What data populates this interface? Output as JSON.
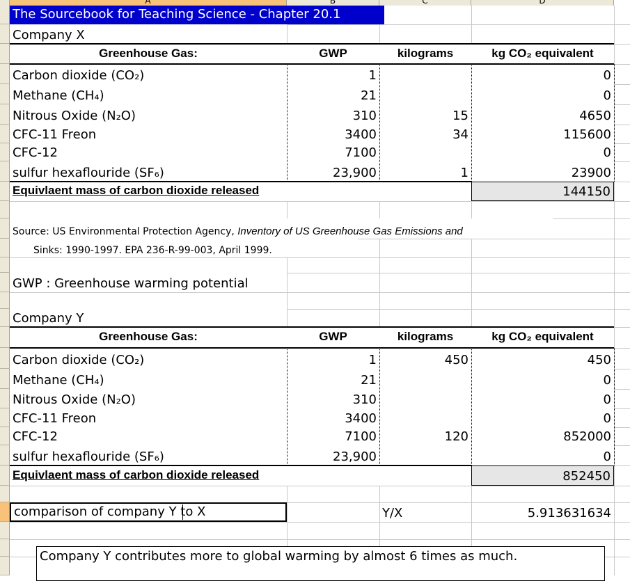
{
  "sheet": {
    "column_headers": [
      "A",
      "B",
      "C",
      "D"
    ],
    "title": "The Sourcebook for Teaching Science - Chapter 20.1",
    "title_bg": "#0000cc",
    "selection_color": "#f8c27a"
  },
  "company_x": {
    "name": "Company X",
    "headers": [
      "Greenhouse Gas:",
      "GWP",
      "kilograms",
      "kg CO₂ equivalent"
    ],
    "rows": [
      {
        "gas": "Carbon dioxide (CO₂)",
        "gwp": "1",
        "kg": "",
        "co2e": "0"
      },
      {
        "gas": "Methane (CH₄)",
        "gwp": "21",
        "kg": "",
        "co2e": "0"
      },
      {
        "gas": "Nitrous Oxide (N₂O)",
        "gwp": "310",
        "kg": "15",
        "co2e": "4650"
      },
      {
        "gas": "CFC-11 Freon",
        "gwp": "3400",
        "kg": "34",
        "co2e": "115600"
      },
      {
        "gas": "CFC-12",
        "gwp": "7100",
        "kg": "",
        "co2e": "0"
      },
      {
        "gas": "sulfur hexaflouride (SF₆)",
        "gwp": "23,900",
        "kg": "1",
        "co2e": "23900"
      }
    ],
    "total_label": "Equivlaent mass of carbon dioxide released",
    "total": "144150"
  },
  "source": {
    "line1_plain": "Source: US Environmental Protection Agency, ",
    "line1_italic": "Inventory of US Greenhouse Gas Emissions and",
    "line2": "Sinks: 1990-1997. EPA 236-R-99-003, April 1999."
  },
  "gwp_note": "GWP : Greenhouse warming potential",
  "company_y": {
    "name": "Company Y",
    "headers": [
      "Greenhouse Gas:",
      "GWP",
      "kilograms",
      "kg CO₂ equivalent"
    ],
    "rows": [
      {
        "gas": "Carbon dioxide (CO₂)",
        "gwp": "1",
        "kg": "450",
        "co2e": "450"
      },
      {
        "gas": "Methane (CH₄)",
        "gwp": "21",
        "kg": "",
        "co2e": "0"
      },
      {
        "gas": "Nitrous Oxide (N₂O)",
        "gwp": "310",
        "kg": "",
        "co2e": "0"
      },
      {
        "gas": "CFC-11 Freon",
        "gwp": "3400",
        "kg": "",
        "co2e": "0"
      },
      {
        "gas": "CFC-12",
        "gwp": "7100",
        "kg": "120",
        "co2e": "852000"
      },
      {
        "gas": "sulfur hexaflouride (SF₆)",
        "gwp": "23,900",
        "kg": "",
        "co2e": "0"
      }
    ],
    "total_label": "Equivlaent mass of carbon dioxide released",
    "total": "852450"
  },
  "comparison": {
    "label": "comparison of company Y to X",
    "ratio_label": "Y/X",
    "value": "5.913631634"
  },
  "text_box": "Company Y contributes more to global warming by almost 6 times as much."
}
